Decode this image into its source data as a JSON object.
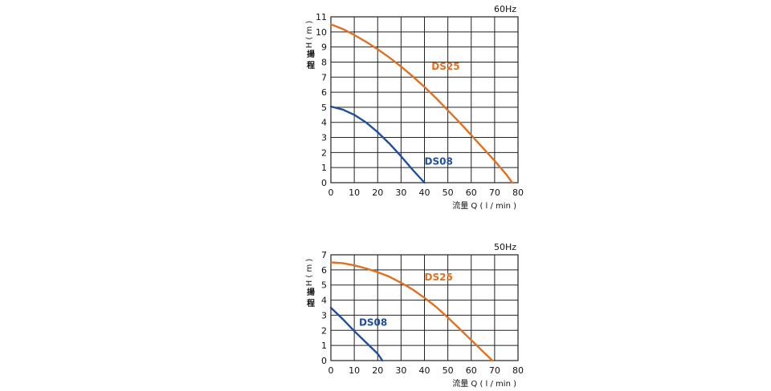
{
  "chart_data": [
    {
      "type": "line",
      "title": "60Hz",
      "xlabel": "流量 Q ( l / min )",
      "ylabel": "H ( m ) 揚程",
      "xlim": [
        0,
        80
      ],
      "ylim": [
        0,
        11
      ],
      "xticks": [
        0,
        10,
        20,
        30,
        40,
        50,
        60,
        70,
        80
      ],
      "yticks": [
        0,
        1,
        2,
        3,
        4,
        5,
        6,
        7,
        8,
        9,
        10,
        11
      ],
      "grid": true,
      "series": [
        {
          "name": "DS08",
          "color": "#1f4e9c",
          "x": [
            0,
            5,
            10,
            15,
            20,
            25,
            30,
            35,
            40
          ],
          "y": [
            5.05,
            4.85,
            4.5,
            4.0,
            3.35,
            2.6,
            1.75,
            0.85,
            0
          ]
        },
        {
          "name": "DS25",
          "color": "#e07020",
          "x": [
            0,
            5,
            10,
            15,
            20,
            25,
            30,
            35,
            40,
            45,
            50,
            55,
            60,
            65,
            70,
            75,
            77.5
          ],
          "y": [
            10.5,
            10.2,
            9.8,
            9.35,
            8.85,
            8.3,
            7.7,
            7.05,
            6.35,
            5.6,
            4.8,
            4.0,
            3.15,
            2.3,
            1.45,
            0.55,
            0
          ]
        }
      ]
    },
    {
      "type": "line",
      "title": "50Hz",
      "xlabel": "流量 Q ( l / min )",
      "ylabel": "H ( m ) 揚程",
      "xlim": [
        0,
        80
      ],
      "ylim": [
        0,
        7
      ],
      "xticks": [
        0,
        10,
        20,
        30,
        40,
        50,
        60,
        70,
        80
      ],
      "yticks": [
        0,
        1,
        2,
        3,
        4,
        5,
        6,
        7
      ],
      "grid": true,
      "series": [
        {
          "name": "DS08",
          "color": "#1f4e9c",
          "x": [
            0,
            5,
            10,
            15,
            20,
            22
          ],
          "y": [
            3.5,
            2.75,
            1.95,
            1.2,
            0.45,
            0
          ]
        },
        {
          "name": "DS25",
          "color": "#e07020",
          "x": [
            0,
            5,
            10,
            15,
            20,
            25,
            30,
            35,
            40,
            45,
            50,
            55,
            60,
            65,
            69
          ],
          "y": [
            6.5,
            6.45,
            6.3,
            6.1,
            5.85,
            5.55,
            5.15,
            4.7,
            4.15,
            3.55,
            2.85,
            2.1,
            1.35,
            0.6,
            0
          ]
        }
      ]
    }
  ]
}
